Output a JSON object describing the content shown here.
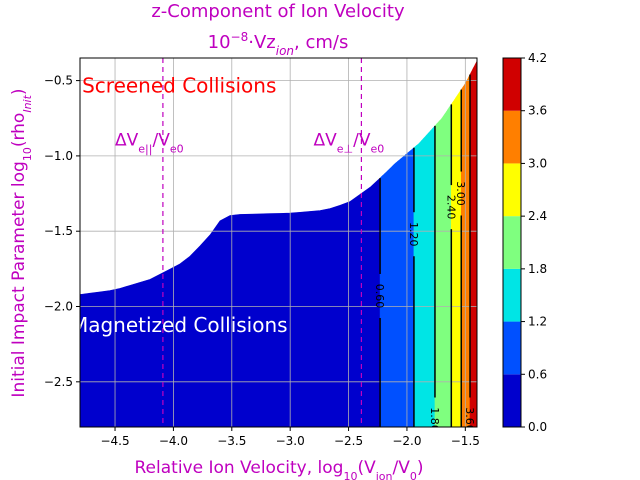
{
  "chart_data": {
    "type": "contour",
    "title_line1": "z-Component of Ion Velocity",
    "title_line2_prefix": "10",
    "title_line2_exp": "−8",
    "title_line2_rest": "·Vz",
    "title_line2_sub": "ion",
    "title_line2_unit": ", cm/s",
    "xlabel_prefix": "Relative Ion Velocity,  log",
    "xlabel_sub": "10",
    "xlabel_suffix": "(V",
    "xlabel_sub2": "ion",
    "xlabel_suffix2": "/V",
    "xlabel_sub3": "0",
    "xlabel_end": ")",
    "ylabel_prefix": "Initial Impact Parameter log",
    "ylabel_sub": "10",
    "ylabel_suffix": "(rho",
    "ylabel_sub2": "Init",
    "ylabel_end": ")",
    "xlim": [
      -4.8,
      -1.4
    ],
    "ylim": [
      -2.8,
      -0.35
    ],
    "xticks": [
      -4.5,
      -4.0,
      -3.5,
      -3.0,
      -2.5,
      -2.0,
      -1.5
    ],
    "xtick_labels": [
      "−4.5",
      "−4.0",
      "−3.5",
      "−3.0",
      "−2.5",
      "−2.0",
      "−1.5"
    ],
    "yticks": [
      -2.5,
      -2.0,
      -1.5,
      -1.0,
      -0.5
    ],
    "ytick_labels": [
      "−2.5",
      "−2.0",
      "−1.5",
      "−1.0",
      "−0.5"
    ],
    "grid": true,
    "upper_boundary": [
      [
        -4.8,
        -1.92
      ],
      [
        -4.5,
        -1.89
      ],
      [
        -4.2,
        -1.82
      ],
      [
        -3.9,
        -1.7
      ],
      [
        -3.7,
        -1.54
      ],
      [
        -3.6,
        -1.43
      ],
      [
        -3.5,
        -1.39
      ],
      [
        -3.0,
        -1.38
      ],
      [
        -2.7,
        -1.36
      ],
      [
        -2.5,
        -1.31
      ],
      [
        -2.3,
        -1.2
      ],
      [
        -2.1,
        -1.05
      ],
      [
        -1.9,
        -0.92
      ],
      [
        -1.7,
        -0.75
      ],
      [
        -1.5,
        -0.52
      ],
      [
        -1.4,
        -0.37
      ]
    ],
    "bands": [
      {
        "x_start": -4.8,
        "x_end": -2.23,
        "level_index": 0
      },
      {
        "x_start": -2.23,
        "x_end": -1.94,
        "level_index": 1
      },
      {
        "x_start": -1.94,
        "x_end": -1.76,
        "level_index": 2
      },
      {
        "x_start": -1.76,
        "x_end": -1.62,
        "level_index": 3
      },
      {
        "x_start": -1.62,
        "x_end": -1.535,
        "level_index": 4
      },
      {
        "x_start": -1.535,
        "x_end": -1.46,
        "level_index": 5
      },
      {
        "x_start": -1.46,
        "x_end": -1.4,
        "level_index": 6
      }
    ],
    "contour_lines": [
      {
        "x": -2.23,
        "label": "0.60",
        "label_y": -1.93
      },
      {
        "x": -1.94,
        "label": "1.20",
        "label_y": -1.52
      },
      {
        "x": -1.76,
        "label": "1.80",
        "label_y": -2.75
      },
      {
        "x": -1.62,
        "label": "2.40",
        "label_y": -1.34
      },
      {
        "x": -1.535,
        "label": "3.00",
        "label_y": -1.25
      },
      {
        "x": -1.46,
        "label": "3.60",
        "label_y": -2.75
      }
    ],
    "vlines": [
      {
        "x": -4.09,
        "label_main": "ΔV",
        "label_sub": "e||",
        "label_rest": "/V",
        "label_sub2": "e0",
        "label_x": -4.5,
        "label_y": -0.93
      },
      {
        "x": -2.39,
        "label_main": "ΔV",
        "label_sub": "e⊥",
        "label_rest": "/V",
        "label_sub2": "e0",
        "label_x": -2.8,
        "label_y": -0.93
      }
    ],
    "annotations": [
      {
        "text": "Screened Collisions",
        "x": -3.95,
        "y": -0.58,
        "color": "#ff0000"
      },
      {
        "text": "Magnetized Collisions",
        "x": -3.95,
        "y": -2.17,
        "color": "#ffffff"
      }
    ],
    "colorbar": {
      "levels": [
        0.0,
        0.6,
        1.2,
        1.8,
        2.4,
        3.0,
        3.6,
        4.2
      ],
      "tick_labels": [
        "0.0",
        "0.6",
        "1.2",
        "1.8",
        "2.4",
        "3.0",
        "3.6",
        "4.2"
      ],
      "colors": [
        "#0000cd",
        "#0050ff",
        "#00e5e5",
        "#7fff7f",
        "#ffff00",
        "#ff7f00",
        "#d00000"
      ]
    }
  }
}
